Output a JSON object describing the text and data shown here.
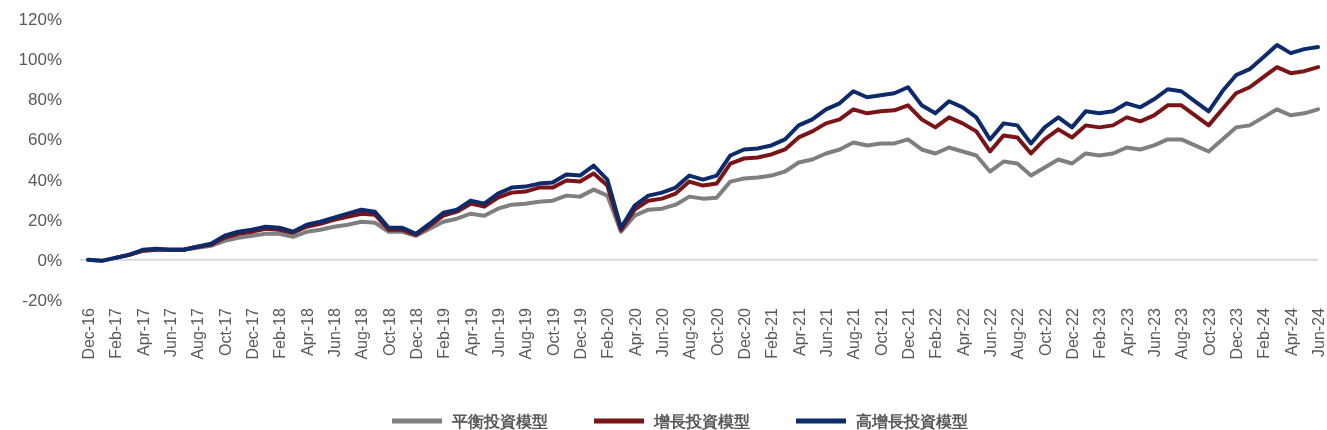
{
  "chart_data": {
    "type": "line",
    "categories": [
      "Dec-16",
      null,
      "Feb-17",
      null,
      "Apr-17",
      null,
      "Jun-17",
      null,
      "Aug-17",
      null,
      "Oct-17",
      null,
      "Dec-17",
      null,
      "Feb-18",
      null,
      "Apr-18",
      null,
      "Jun-18",
      null,
      "Aug-18",
      null,
      "Oct-18",
      null,
      "Dec-18",
      null,
      "Feb-19",
      null,
      "Apr-19",
      null,
      "Jun-19",
      null,
      "Aug-19",
      null,
      "Oct-19",
      null,
      "Dec-19",
      null,
      "Feb-20",
      null,
      "Apr-20",
      null,
      "Jun-20",
      null,
      "Aug-20",
      null,
      "Oct-20",
      null,
      "Dec-20",
      null,
      "Feb-21",
      null,
      "Apr-21",
      null,
      "Jun-21",
      null,
      "Aug-21",
      null,
      "Oct-21",
      null,
      "Dec-21",
      null,
      "Feb-22",
      null,
      "Apr-22",
      null,
      "Jun-22",
      null,
      "Aug-22",
      null,
      "Oct-22",
      null,
      "Dec-22",
      null,
      "Feb-23",
      null,
      "Apr-23",
      null,
      "Jun-23",
      null,
      "Aug-23",
      null,
      "Oct-23",
      null,
      "Dec-23",
      null,
      "Feb-24",
      null,
      "Apr-24",
      null,
      "Jun-24"
    ],
    "ylim": [
      -20,
      120
    ],
    "yticks": [
      {
        "value": -20,
        "label": "-20%"
      },
      {
        "value": 0,
        "label": "0%"
      },
      {
        "value": 20,
        "label": "20%"
      },
      {
        "value": 40,
        "label": "40%"
      },
      {
        "value": 60,
        "label": "60%"
      },
      {
        "value": 80,
        "label": "80%"
      },
      {
        "value": 100,
        "label": "100%"
      },
      {
        "value": 120,
        "label": "120%"
      }
    ],
    "grid": false,
    "ref_lines": [
      {
        "axis": "y",
        "value": 0,
        "color": "#d9d9d9"
      }
    ],
    "legend": "bottom",
    "marker": "none",
    "line_style": "solid",
    "series": [
      {
        "name": "平衡投資模型",
        "color": "#7f7f7f",
        "values": [
          0,
          -0.5,
          1,
          2.5,
          4.5,
          5,
          5,
          5,
          6,
          7,
          9.5,
          11,
          12,
          13,
          13,
          11.5,
          14,
          15,
          16.5,
          17.5,
          19,
          18.5,
          14,
          14,
          12,
          15.5,
          19,
          20.5,
          23,
          22,
          25.5,
          27.5,
          28,
          29,
          29.5,
          32,
          31.5,
          35,
          32,
          14,
          22,
          25,
          25.5,
          27.5,
          31.5,
          30.5,
          31,
          39,
          40.5,
          41,
          42,
          44,
          48.5,
          50,
          53,
          55,
          58.5,
          57,
          58,
          58,
          60,
          55,
          53,
          56,
          54,
          52,
          44,
          49,
          48,
          42,
          46,
          50,
          48,
          53,
          52,
          53,
          56,
          55,
          57,
          60,
          60,
          57,
          54,
          60,
          66,
          67,
          71,
          75,
          72,
          73,
          75
        ]
      },
      {
        "name": "增長投資模型",
        "color": "#7b1416",
        "values": [
          null,
          null,
          1,
          2.5,
          4.5,
          5,
          5,
          5,
          6.5,
          7.5,
          11,
          13,
          14,
          15.5,
          15,
          13.5,
          16.5,
          18,
          20,
          21.5,
          23,
          22.5,
          15,
          15,
          12.5,
          17,
          22,
          24,
          28,
          26.5,
          31,
          33.5,
          34,
          36,
          36,
          39.5,
          39,
          43,
          37,
          15,
          25,
          29.5,
          30.5,
          33,
          39,
          37,
          38,
          48,
          50.5,
          51,
          52.5,
          55,
          61,
          64,
          68,
          70,
          75,
          73,
          74,
          74.5,
          77,
          70,
          66,
          71,
          68,
          64,
          54,
          62,
          61,
          53,
          60,
          65,
          61,
          67,
          66,
          67,
          71,
          69,
          72,
          77,
          77,
          72,
          67,
          75,
          83,
          86,
          91,
          96,
          93,
          94,
          96
        ]
      },
      {
        "name": "高增長投資模型",
        "color": "#0d2a6b",
        "values": [
          0,
          -0.5,
          1,
          2.5,
          5,
          5.5,
          5,
          5,
          6.5,
          8,
          12,
          14,
          15,
          16.5,
          16,
          14,
          17.5,
          19,
          21,
          23,
          25,
          24,
          16,
          16,
          13,
          18,
          23.5,
          25,
          29.5,
          28,
          33,
          36,
          36.5,
          38,
          38.5,
          42.5,
          42,
          47,
          40,
          16,
          27,
          32,
          33.5,
          36,
          42,
          40,
          42,
          52,
          55,
          55.5,
          57,
          60,
          67,
          70,
          75,
          78,
          84,
          81,
          82,
          83,
          86,
          77,
          73,
          79,
          76,
          71,
          60,
          68,
          67,
          58,
          66,
          71,
          66,
          74,
          73,
          74,
          78,
          76,
          80,
          85,
          84,
          79,
          74,
          84,
          92,
          95,
          101,
          107,
          103,
          105,
          106
        ]
      }
    ]
  }
}
